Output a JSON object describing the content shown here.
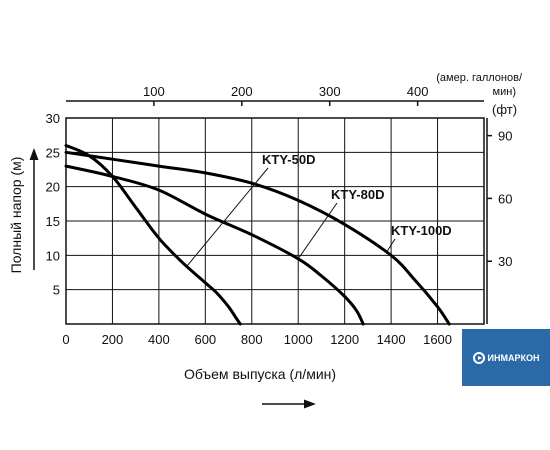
{
  "chart_data": {
    "type": "line",
    "xlabel": "Объем выпуска (л/мин)",
    "ylabel": "Полный напор (м)",
    "xlim": [
      0,
      1800
    ],
    "ylim": [
      0,
      30
    ],
    "x_ticks": [
      "0",
      "200",
      "400",
      "600",
      "800",
      "1000",
      "1200",
      "1400",
      "1600"
    ],
    "y_ticks": [
      "5",
      "10",
      "15",
      "20",
      "25",
      "30"
    ],
    "top_axis": {
      "unit_label_line1": "(амер. галлонов/",
      "unit_label_line2": "мин)",
      "ticks": [
        "100",
        "200",
        "300",
        "400"
      ],
      "tick_values_lpm": [
        378.5,
        757.1,
        1135.6,
        1514.2
      ]
    },
    "right_axis": {
      "unit_label": "(фт)",
      "ticks": [
        "30",
        "60",
        "90"
      ],
      "tick_values_m": [
        9.14,
        18.29,
        27.43
      ]
    },
    "grid": true,
    "series": [
      {
        "name": "KTY-50D",
        "x": [
          0,
          100,
          200,
          300,
          400,
          500,
          600,
          650,
          700,
          730,
          750
        ],
        "y": [
          26.0,
          24.5,
          21.5,
          17.0,
          12.5,
          9.0,
          6.0,
          4.5,
          2.5,
          1.0,
          0
        ]
      },
      {
        "name": "KTY-80D",
        "x": [
          0,
          200,
          400,
          600,
          800,
          1000,
          1100,
          1200,
          1250,
          1280
        ],
        "y": [
          23.0,
          21.5,
          19.5,
          16.0,
          13.0,
          9.5,
          7.0,
          4.0,
          2.0,
          0
        ]
      },
      {
        "name": "KTY-100D",
        "x": [
          0,
          200,
          400,
          600,
          800,
          1000,
          1200,
          1400,
          1500,
          1600,
          1650
        ],
        "y": [
          25.0,
          24.0,
          23.0,
          22.0,
          20.5,
          18.0,
          14.5,
          10.0,
          6.5,
          2.5,
          0
        ]
      }
    ]
  },
  "logo": {
    "text": "ИНМАРКОН"
  }
}
